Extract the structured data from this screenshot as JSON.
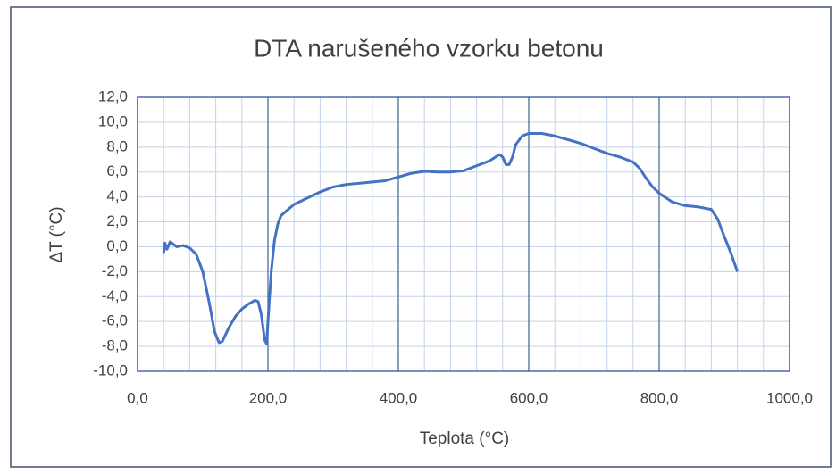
{
  "chart_data": {
    "type": "line",
    "title": "DTA narušeného vzorku betonu",
    "x_label": "Teplota (°C)",
    "y_label": "ΔT (°C)",
    "xlim": [
      0,
      1000
    ],
    "ylim": [
      -10,
      12
    ],
    "xticks": [
      {
        "value": 0,
        "label": "0,0"
      },
      {
        "value": 200,
        "label": "200,0"
      },
      {
        "value": 400,
        "label": "400,0"
      },
      {
        "value": 600,
        "label": "600,0"
      },
      {
        "value": 800,
        "label": "800,0"
      },
      {
        "value": 1000,
        "label": "1000,0"
      }
    ],
    "xminorticks": [
      40,
      80,
      120,
      160,
      240,
      280,
      320,
      360,
      440,
      480,
      520,
      560,
      640,
      680,
      720,
      760,
      840,
      880,
      920,
      960
    ],
    "yticks": [
      {
        "value": -10,
        "label": "-10,0"
      },
      {
        "value": -8,
        "label": "-8,0"
      },
      {
        "value": -6,
        "label": "-6,0"
      },
      {
        "value": -4,
        "label": "-4,0"
      },
      {
        "value": -2,
        "label": "-2,0"
      },
      {
        "value": 0,
        "label": "0,0"
      },
      {
        "value": 2,
        "label": "2,0"
      },
      {
        "value": 4,
        "label": "4,0"
      },
      {
        "value": 6,
        "label": "6,0"
      },
      {
        "value": 8,
        "label": "8,0"
      },
      {
        "value": 10,
        "label": "10,0"
      },
      {
        "value": 12,
        "label": "12,0"
      }
    ],
    "grid": true,
    "series": [
      {
        "color": "#4472c4",
        "x": [
          40,
          42,
          45,
          50,
          55,
          60,
          70,
          80,
          90,
          100,
          110,
          118,
          125,
          130,
          140,
          150,
          160,
          170,
          180,
          185,
          190,
          195,
          198,
          200,
          205,
          210,
          215,
          220,
          240,
          260,
          280,
          300,
          320,
          350,
          380,
          400,
          420,
          440,
          460,
          480,
          500,
          520,
          540,
          555,
          560,
          565,
          570,
          575,
          580,
          590,
          600,
          620,
          640,
          660,
          680,
          700,
          720,
          740,
          760,
          770,
          780,
          790,
          800,
          820,
          840,
          860,
          880,
          890,
          900,
          910,
          920
        ],
        "values": [
          -0.5,
          0.3,
          -0.2,
          0.4,
          0.2,
          0.0,
          0.1,
          -0.1,
          -0.6,
          -2,
          -4.5,
          -6.8,
          -7.7,
          -7.6,
          -6.5,
          -5.6,
          -5.0,
          -4.6,
          -4.3,
          -4.4,
          -5.5,
          -7.5,
          -7.8,
          -6,
          -2,
          0.5,
          1.8,
          2.5,
          3.4,
          3.9,
          4.4,
          4.8,
          5.0,
          5.15,
          5.3,
          5.6,
          5.9,
          6.05,
          6.0,
          6.0,
          6.1,
          6.5,
          6.9,
          7.4,
          7.2,
          6.6,
          6.6,
          7.2,
          8.2,
          8.9,
          9.1,
          9.1,
          8.9,
          8.6,
          8.3,
          7.9,
          7.5,
          7.2,
          6.8,
          6.3,
          5.5,
          4.8,
          4.3,
          3.6,
          3.3,
          3.2,
          3.0,
          2.2,
          0.8,
          -0.5,
          -2.0
        ]
      }
    ]
  }
}
